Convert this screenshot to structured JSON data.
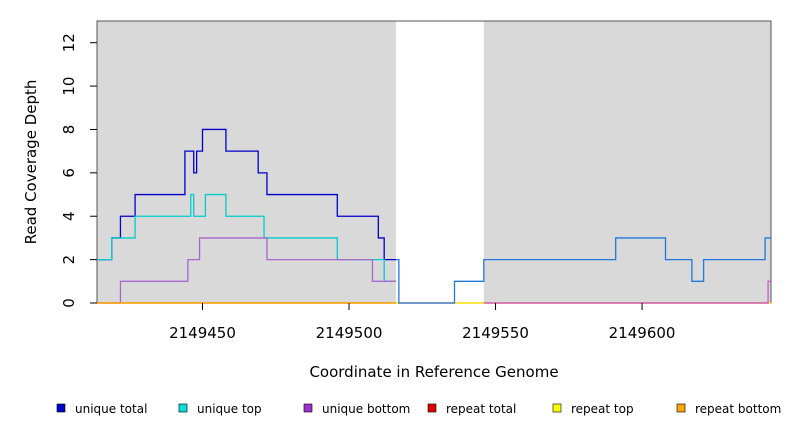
{
  "chart_data": {
    "type": "line",
    "line_style": "step",
    "title": "",
    "xlabel": "Coordinate in Reference Genome",
    "ylabel": "Read Coverage Depth",
    "xlim": [
      2149414,
      2149644
    ],
    "ylim": [
      0,
      13
    ],
    "x_ticks": [
      2149450,
      2149500,
      2149550,
      2149600
    ],
    "y_ticks": [
      0,
      2,
      4,
      6,
      8,
      10,
      12
    ],
    "grid": false,
    "shaded_regions": [
      {
        "x0": 2149414,
        "x1": 2149516,
        "color": "#d9d9d9"
      },
      {
        "x0": 2149546,
        "x1": 2149644,
        "color": "#d9d9d9"
      }
    ],
    "legend_position": "bottom",
    "series": [
      {
        "name": "unique total",
        "color": "#0000cc",
        "points": [
          [
            2149414,
            2
          ],
          [
            2149415,
            2
          ],
          [
            2149419,
            3
          ],
          [
            2149422,
            4
          ],
          [
            2149427,
            5
          ],
          [
            2149444,
            7
          ],
          [
            2149447,
            6
          ],
          [
            2149448,
            7
          ],
          [
            2149450,
            8
          ],
          [
            2149458,
            7
          ],
          [
            2149469,
            6
          ],
          [
            2149472,
            5
          ],
          [
            2149496,
            4
          ],
          [
            2149510,
            3
          ],
          [
            2149512,
            2
          ],
          [
            2149516,
            2
          ]
        ]
      },
      {
        "name": "unique top",
        "color": "#00cccc",
        "points": [
          [
            2149414,
            2
          ],
          [
            2149419,
            3
          ],
          [
            2149427,
            4
          ],
          [
            2149446,
            5
          ],
          [
            2149447,
            4
          ],
          [
            2149451,
            5
          ],
          [
            2149458,
            4
          ],
          [
            2149471,
            3
          ],
          [
            2149496,
            2
          ],
          [
            2149512,
            1
          ],
          [
            2149516,
            1
          ]
        ]
      },
      {
        "name": "unique bottom",
        "color": "#aa66cc",
        "points": [
          [
            2149414,
            0
          ],
          [
            2149422,
            1
          ],
          [
            2149445,
            2
          ],
          [
            2149449,
            3
          ],
          [
            2149472,
            2
          ],
          [
            2149508,
            1
          ],
          [
            2149516,
            1
          ]
        ]
      },
      {
        "name": "repeat total",
        "color": "#cc0000",
        "points": [
          [
            2149414,
            0
          ],
          [
            2149644,
            0
          ]
        ]
      },
      {
        "name": "repeat top",
        "color": "#ffff00",
        "points": [
          [
            2149414,
            0
          ],
          [
            2149644,
            0
          ]
        ]
      },
      {
        "name": "repeat bottom",
        "color": "#ffa500",
        "points": [
          [
            2149414,
            0
          ],
          [
            2149516,
            0
          ]
        ]
      },
      {
        "name": "",
        "color": "#2277dd",
        "points": [
          [
            2149516,
            2
          ],
          [
            2149517,
            0
          ],
          [
            2149536,
            1
          ],
          [
            2149546,
            2
          ],
          [
            2149591,
            3
          ],
          [
            2149608,
            2
          ],
          [
            2149617,
            1
          ],
          [
            2149621,
            2
          ],
          [
            2149642,
            3
          ],
          [
            2149644,
            3
          ]
        ]
      },
      {
        "name": "",
        "color": "#cc55cc",
        "points": [
          [
            2149546,
            0
          ],
          [
            2149642,
            0
          ],
          [
            2149643,
            1
          ],
          [
            2149644,
            1
          ]
        ]
      }
    ]
  },
  "legend": {
    "items": [
      {
        "label": "unique total",
        "color": "#0000cc"
      },
      {
        "label": "unique top",
        "color": "#00dddd"
      },
      {
        "label": "unique bottom",
        "color": "#9933cc"
      },
      {
        "label": "repeat total",
        "color": "#dd0000"
      },
      {
        "label": "repeat top",
        "color": "#ffff00"
      },
      {
        "label": "repeat bottom",
        "color": "#ffa500"
      }
    ]
  }
}
